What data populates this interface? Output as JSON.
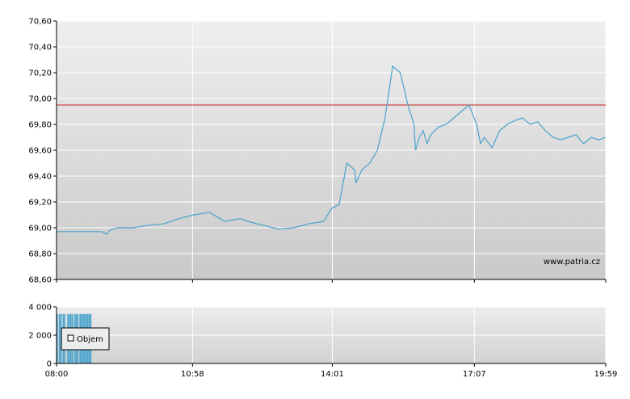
{
  "watermark": "www.patria.cz",
  "colors": {
    "price_line": "#4aa3cc",
    "reference_line": "#cc2222",
    "volume_bar": "#4aa3cc",
    "grid": "#ffffff",
    "axis": "#000000"
  },
  "chart_data": [
    {
      "type": "line",
      "title": "",
      "xlabel": "",
      "ylabel": "",
      "xlim": [
        "08:00",
        "19:59"
      ],
      "ylim": [
        68.6,
        70.6
      ],
      "y_ticks": [
        "68,60",
        "68,80",
        "69,00",
        "69,20",
        "69,40",
        "69,60",
        "69,80",
        "70,00",
        "70,20",
        "70,40",
        "70,60"
      ],
      "y_tick_values": [
        68.6,
        68.8,
        69.0,
        69.2,
        69.4,
        69.6,
        69.8,
        70.0,
        70.2,
        70.4,
        70.6
      ],
      "x_ticks": [
        "08:00",
        "10:58",
        "14:01",
        "17:07",
        "19:59"
      ],
      "reference_line": 69.95,
      "grid": true,
      "series": [
        {
          "x": [
            "08:00",
            "08:30",
            "09:00",
            "09:05",
            "09:10",
            "09:20",
            "09:40",
            "10:00",
            "10:20",
            "10:40",
            "11:00",
            "11:20",
            "11:40",
            "12:00",
            "12:10",
            "12:30",
            "12:50",
            "13:10",
            "13:30",
            "13:50",
            "14:00",
            "14:10",
            "14:20",
            "14:30",
            "14:32",
            "14:40",
            "14:50",
            "15:00",
            "15:10",
            "15:20",
            "15:30",
            "15:40",
            "15:48",
            "15:50",
            "15:55",
            "16:00",
            "16:05",
            "16:10",
            "16:20",
            "16:30",
            "16:40",
            "16:50",
            "17:00",
            "17:10",
            "17:15",
            "17:20",
            "17:30",
            "17:40",
            "17:50",
            "18:00",
            "18:10",
            "18:20",
            "18:30",
            "18:40",
            "18:50",
            "19:00",
            "19:10",
            "19:20",
            "19:30",
            "19:40",
            "19:50",
            "19:59"
          ],
          "y": [
            68.97,
            68.97,
            68.97,
            68.95,
            68.98,
            69.0,
            69.0,
            69.02,
            69.03,
            69.07,
            69.1,
            69.12,
            69.05,
            69.07,
            69.05,
            69.02,
            68.99,
            69.0,
            69.03,
            69.05,
            69.15,
            69.18,
            69.5,
            69.45,
            69.35,
            69.45,
            69.5,
            69.6,
            69.85,
            70.25,
            70.2,
            69.95,
            69.8,
            69.6,
            69.7,
            69.75,
            69.65,
            69.72,
            69.78,
            69.8,
            69.85,
            69.9,
            69.95,
            69.8,
            69.65,
            69.7,
            69.62,
            69.75,
            69.8,
            69.83,
            69.85,
            69.8,
            69.82,
            69.75,
            69.7,
            69.68,
            69.7,
            69.72,
            69.65,
            69.7,
            69.68,
            69.7
          ]
        }
      ]
    },
    {
      "type": "bar",
      "title": "",
      "xlabel": "",
      "ylabel": "",
      "ylim": [
        0,
        4000
      ],
      "y_ticks": [
        "0",
        "2 000",
        "4 000"
      ],
      "y_tick_values": [
        0,
        2000,
        4000
      ],
      "x_ticks": [
        "08:00",
        "10:58",
        "14:01",
        "17:07",
        "19:59"
      ],
      "grid": true,
      "legend": {
        "label": "Objem",
        "placement": "top-left"
      },
      "series": [
        {
          "name": "Objem",
          "x": [
            "08:00",
            "08:03",
            "08:05",
            "08:08",
            "08:10",
            "08:14",
            "08:16",
            "08:18",
            "08:20",
            "08:23",
            "08:25",
            "08:27",
            "08:30",
            "08:32",
            "08:34",
            "08:36",
            "08:38",
            "08:40",
            "08:42",
            "08:44"
          ],
          "values": [
            3500,
            3500,
            3500,
            3500,
            3500,
            3500,
            3500,
            3500,
            3500,
            3500,
            3500,
            3500,
            3500,
            3500,
            3500,
            3500,
            3500,
            3500,
            3500,
            3500
          ]
        }
      ]
    }
  ]
}
